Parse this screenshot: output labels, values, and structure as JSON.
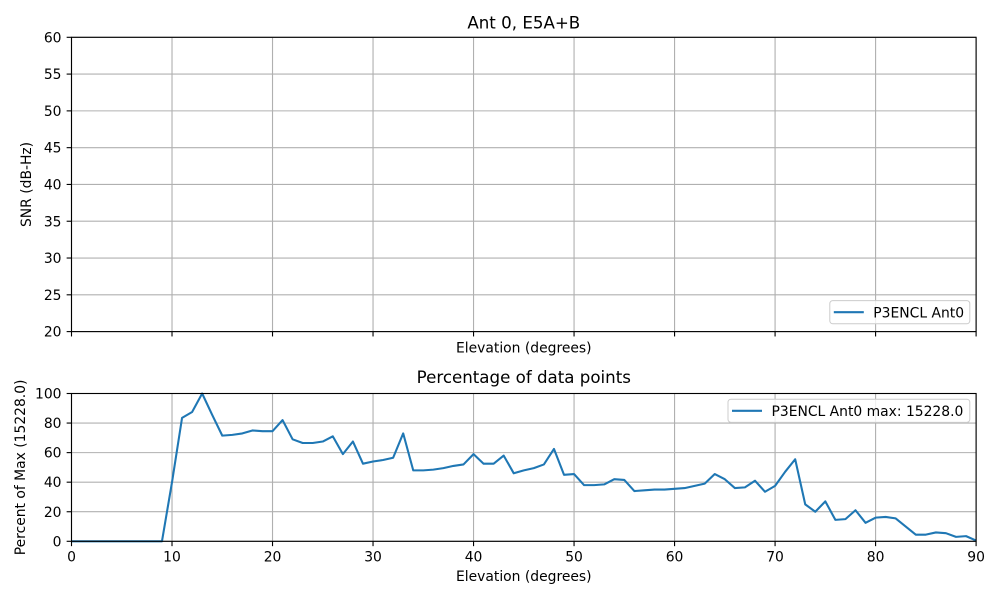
{
  "figure": {
    "background": "#ffffff",
    "line_color": "#1f77b4",
    "grid_color": "#b0b0b0",
    "spine_color": "#000000",
    "text_color": "#000000",
    "legend_edge_color": "#cccccc",
    "legend_face_color": "#ffffff"
  },
  "chart_data": [
    {
      "type": "line",
      "title": "Ant 0, E5A+B",
      "xlabel": "Elevation (degrees)",
      "ylabel": "SNR (dB-Hz)",
      "xlim": [
        0,
        90
      ],
      "ylim": [
        20,
        60
      ],
      "xticks": [
        0,
        10,
        20,
        30,
        40,
        50,
        60,
        70,
        80,
        90
      ],
      "yticks": [
        20,
        25,
        30,
        35,
        40,
        45,
        50,
        55,
        60
      ],
      "x_tick_labels_visible": false,
      "y_tick_labels_visible": true,
      "grid": true,
      "legend": {
        "position": "lower right",
        "entries": [
          {
            "label": "P3ENCL Ant0",
            "color": "#1f77b4"
          }
        ]
      },
      "series": []
    },
    {
      "type": "line",
      "title": "Percentage of data points",
      "xlabel": "Elevation (degrees)",
      "ylabel": "Percent of Max (15228.0)",
      "xlim": [
        0,
        90
      ],
      "ylim": [
        0,
        100
      ],
      "xticks": [
        0,
        10,
        20,
        30,
        40,
        50,
        60,
        70,
        80,
        90
      ],
      "yticks": [
        0,
        20,
        40,
        60,
        80,
        100
      ],
      "x_tick_labels_visible": true,
      "y_tick_labels_visible": true,
      "grid": true,
      "legend": {
        "position": "upper right",
        "entries": [
          {
            "label": "P3ENCL Ant0 max: 15228.0",
            "color": "#1f77b4"
          }
        ]
      },
      "series": [
        {
          "name": "P3ENCL Ant0 max: 15228.0",
          "color": "#1f77b4",
          "x": [
            0,
            1,
            2,
            3,
            4,
            5,
            6,
            7,
            8,
            9,
            10,
            11,
            12,
            13,
            14,
            15,
            16,
            17,
            18,
            19,
            20,
            21,
            22,
            23,
            24,
            25,
            26,
            27,
            28,
            29,
            30,
            31,
            32,
            33,
            34,
            35,
            36,
            37,
            38,
            39,
            40,
            41,
            42,
            43,
            44,
            45,
            46,
            47,
            48,
            49,
            50,
            51,
            52,
            53,
            54,
            55,
            56,
            57,
            58,
            59,
            60,
            61,
            62,
            63,
            64,
            65,
            66,
            67,
            68,
            69,
            70,
            71,
            72,
            73,
            74,
            75,
            76,
            77,
            78,
            79,
            80,
            81,
            82,
            83,
            84,
            85,
            86,
            87,
            88,
            89,
            90
          ],
          "values": [
            0,
            0,
            0,
            0,
            0,
            0,
            0,
            0,
            0,
            0,
            40,
            83.5,
            87.5,
            100,
            85.5,
            71.5,
            72,
            73,
            75,
            74.5,
            74.5,
            82,
            69,
            66.5,
            66.5,
            67.5,
            71,
            59,
            67.5,
            52.5,
            54,
            55,
            56.5,
            73,
            48,
            48,
            48.5,
            49.5,
            51,
            52,
            59,
            52.5,
            52.5,
            58,
            46,
            48,
            49.5,
            52,
            62.5,
            45,
            45.5,
            38,
            38,
            38.5,
            42,
            41.5,
            34,
            34.5,
            35,
            35,
            35.5,
            36,
            37.5,
            39,
            45.5,
            42,
            36,
            36.5,
            41,
            33.5,
            37.5,
            47,
            55.5,
            25,
            20,
            27,
            14.5,
            15,
            21,
            12.5,
            16,
            16.5,
            15.5,
            10,
            4.5,
            4.5,
            6,
            5.5,
            3,
            3.5,
            0.5
          ]
        }
      ]
    }
  ]
}
